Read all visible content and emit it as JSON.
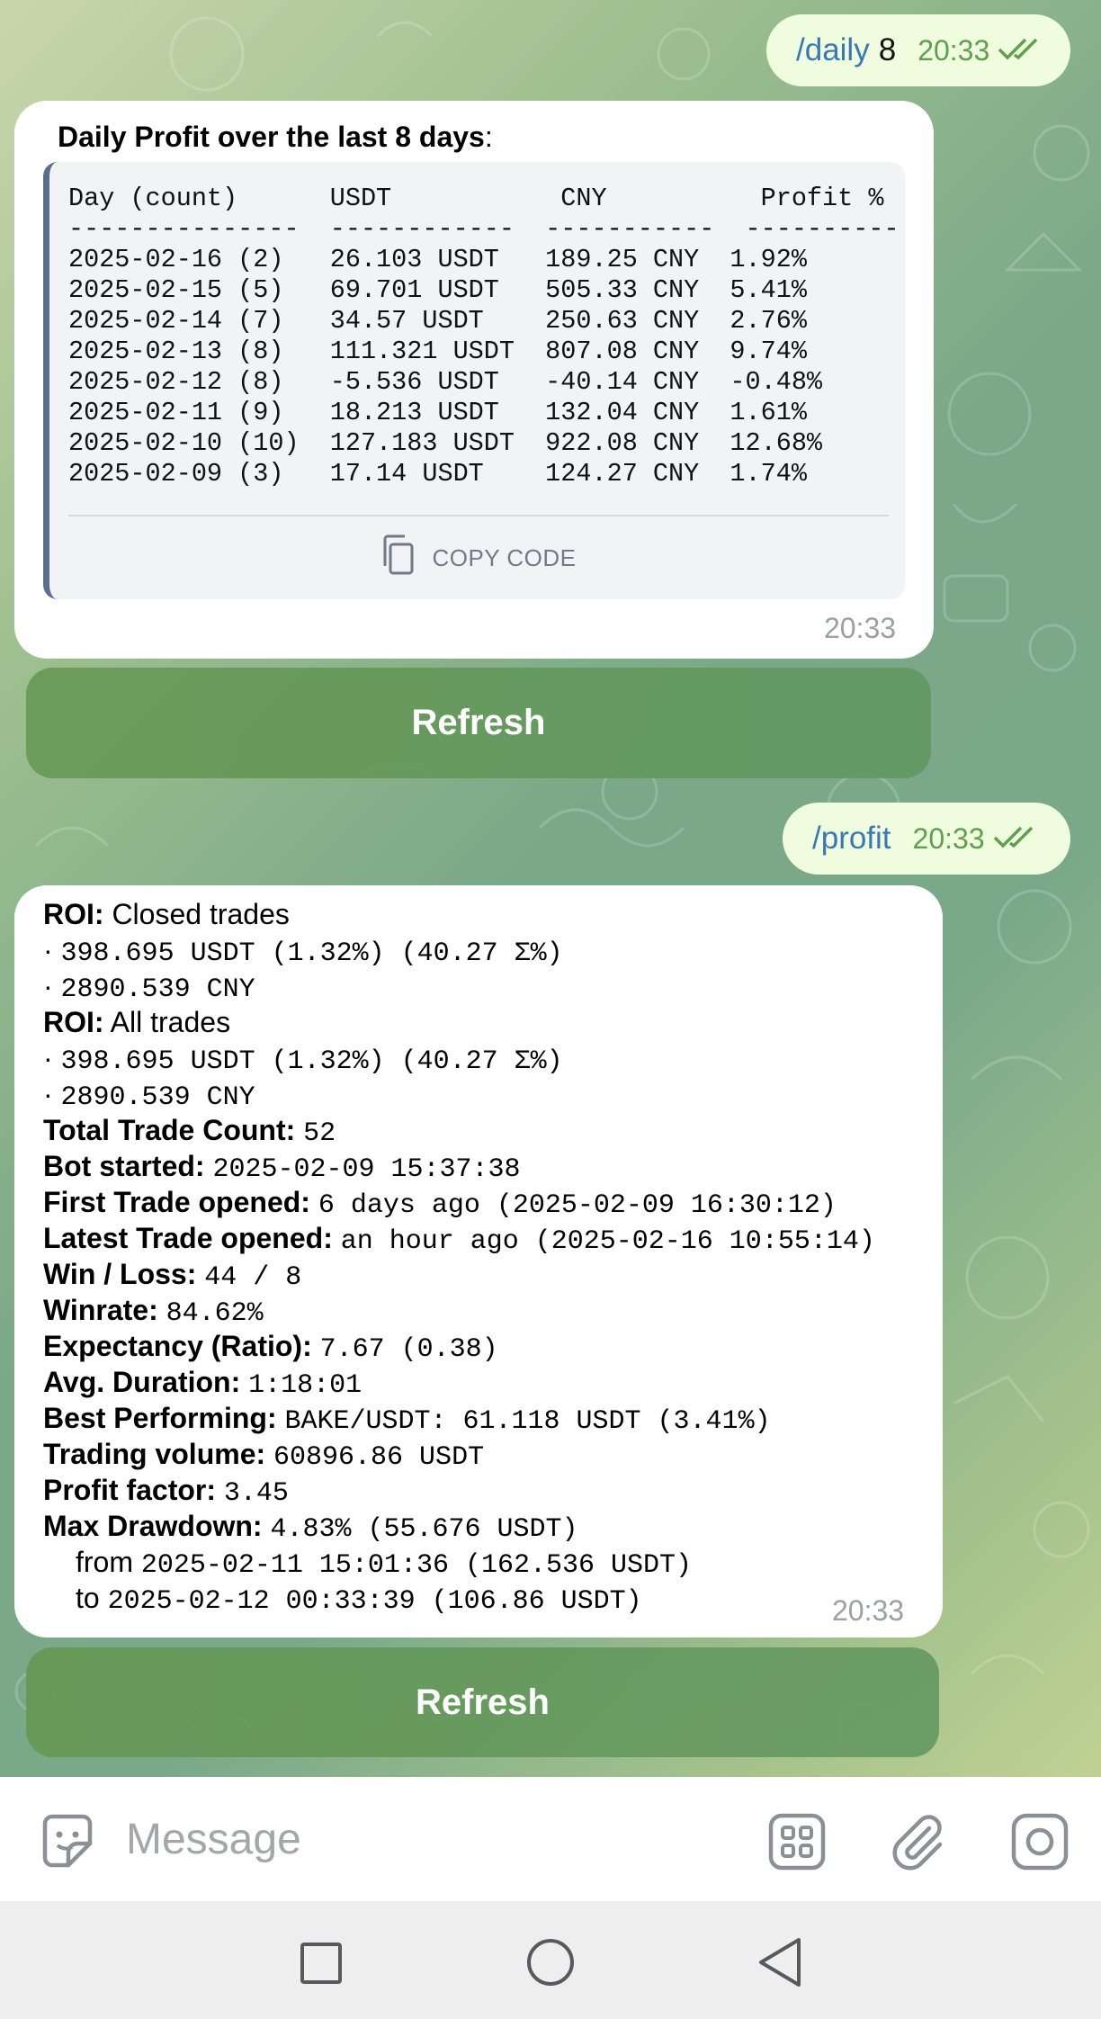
{
  "messages": {
    "daily_cmd": {
      "command": "/daily",
      "argument": "8",
      "time": "20:33"
    },
    "daily_reply": {
      "title_bold": "Daily Profit over the last 8 days",
      "title_suffix": ":",
      "code": "Day (count)      USDT           CNY          Profit %\n---------------  ------------  -----------  ----------\n2025-02-16 (2)   26.103 USDT   189.25 CNY  1.92%\n2025-02-15 (5)   69.701 USDT   505.33 CNY  5.41%\n2025-02-14 (7)   34.57 USDT    250.63 CNY  2.76%\n2025-02-13 (8)   111.321 USDT  807.08 CNY  9.74%\n2025-02-12 (8)   -5.536 USDT   -40.14 CNY  -0.48%\n2025-02-11 (9)   18.213 USDT   132.04 CNY  1.61%\n2025-02-10 (10)  127.183 USDT  922.08 CNY  12.68%\n2025-02-09 (3)   17.14 USDT    124.27 CNY  1.74%",
      "copy_label": "COPY CODE",
      "time": "20:33"
    },
    "daily_refresh_label": "Refresh",
    "profit_cmd": {
      "command": "/profit",
      "time": "20:33"
    },
    "profit_reply": {
      "roi_closed_label": "ROI:",
      "roi_closed_text": "Closed trades",
      "roi_closed_usdt": "398.695 USDT (1.32%) (40.27 Σ%)",
      "roi_closed_cny": "2890.539 CNY",
      "roi_all_label": "ROI:",
      "roi_all_text": "All trades",
      "roi_all_usdt": "398.695 USDT (1.32%) (40.27 Σ%)",
      "roi_all_cny": "2890.539 CNY",
      "bullet": "·",
      "stats": [
        {
          "label": "Total Trade Count:",
          "value": "52"
        },
        {
          "label": "Bot started:",
          "value": "2025-02-09 15:37:38"
        },
        {
          "label": "First Trade opened:",
          "value": "6 days ago (2025-02-09 16:30:12)"
        },
        {
          "label": "Latest Trade opened:",
          "value": "an hour ago (2025-02-16 10:55:14)"
        },
        {
          "label": "Win / Loss:",
          "value": "44 / 8"
        },
        {
          "label": "Winrate:",
          "value": "84.62%"
        },
        {
          "label": "Expectancy (Ratio):",
          "value": "7.67 (0.38)"
        },
        {
          "label": "Avg. Duration:",
          "value": "1:18:01"
        },
        {
          "label": "Best Performing:",
          "value": "BAKE/USDT: 61.118 USDT (3.41%)"
        },
        {
          "label": "Trading volume:",
          "value": "60896.86 USDT"
        },
        {
          "label": "Profit factor:",
          "value": "3.45"
        },
        {
          "label": "Max Drawdown:",
          "value": "4.83% (55.676 USDT)"
        }
      ],
      "drawdown_from_label": "from",
      "drawdown_from_value": "2025-02-11 15:01:36 (162.536 USDT)",
      "drawdown_to_label": "to",
      "drawdown_to_value": "2025-02-12 00:33:39 (106.86 USDT)",
      "time": "20:33"
    },
    "profit_refresh_label": "Refresh"
  },
  "composer": {
    "placeholder": "Message",
    "icons": [
      "sticker-icon",
      "bot-menu-icon",
      "attach-icon",
      "camera-icon"
    ]
  },
  "navigation": {
    "icons": [
      "recents-square-icon",
      "home-circle-icon",
      "back-triangle-icon"
    ]
  },
  "colors": {
    "outgoing_bubble": "#effdde",
    "command_link": "#3a78b5",
    "read_ticks": "#5fa04e",
    "refresh_button": "#6a9a64"
  }
}
